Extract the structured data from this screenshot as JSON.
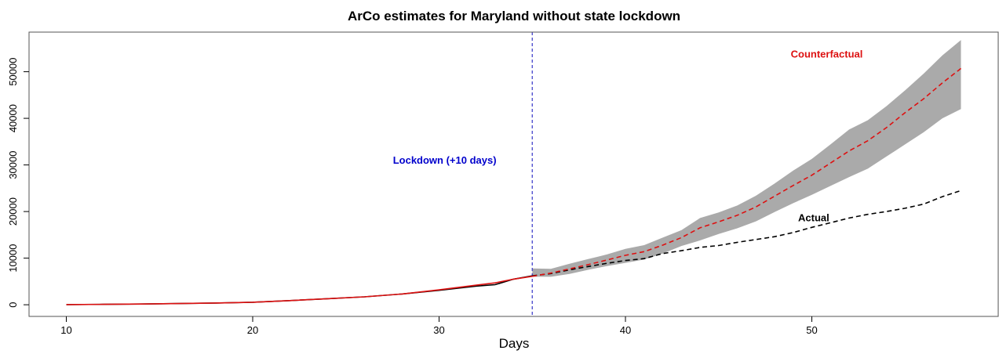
{
  "chart_data": {
    "type": "line",
    "title": "ArCo estimates for Maryland without state lockdown",
    "xlabel": "Days",
    "ylabel": "",
    "xlim": [
      8,
      60
    ],
    "ylim": [
      -2500,
      58500
    ],
    "xticks": [
      "10",
      "20",
      "30",
      "40",
      "50"
    ],
    "xtick_values": [
      10,
      20,
      30,
      40,
      50
    ],
    "yticks": [
      "0",
      "10000",
      "20000",
      "30000",
      "40000",
      "50000"
    ],
    "ytick_values": [
      0,
      10000,
      20000,
      30000,
      40000,
      50000
    ],
    "lockdown_day": 35,
    "annotations": [
      {
        "text": "Lockdown (+10 days)",
        "x": 30.3,
        "y": 30300,
        "color": "#0000cc"
      },
      {
        "text": "Counterfactual",
        "x": 50.8,
        "y": 53000,
        "color": "#dd1111"
      },
      {
        "text": "Actual",
        "x": 50.1,
        "y": 17900,
        "color": "#000000"
      }
    ],
    "series": [
      {
        "name": "Actual",
        "color": "#000000",
        "style": "solid-then-dashed",
        "x": [
          10,
          12,
          14,
          16,
          18,
          20,
          22,
          24,
          26,
          28,
          30,
          32,
          33,
          34,
          35,
          36,
          37,
          38,
          39,
          40,
          41,
          42,
          43,
          44,
          45,
          46,
          47,
          48,
          49,
          50,
          51,
          52,
          53,
          54,
          55,
          56,
          57,
          58
        ],
        "values": [
          30,
          80,
          150,
          250,
          380,
          550,
          900,
          1300,
          1700,
          2300,
          3100,
          4000,
          4300,
          5500,
          6200,
          6700,
          7500,
          8200,
          8900,
          9500,
          9900,
          11000,
          11600,
          12300,
          12700,
          13400,
          14000,
          14600,
          15500,
          16600,
          17600,
          18600,
          19400,
          20000,
          20700,
          21600,
          23200,
          24500
        ]
      },
      {
        "name": "Counterfactual",
        "color": "#dd1111",
        "style": "solid-then-dashed",
        "x": [
          10,
          12,
          14,
          16,
          18,
          20,
          22,
          24,
          26,
          28,
          30,
          32,
          33,
          34,
          35,
          36,
          37,
          38,
          39,
          40,
          41,
          42,
          43,
          44,
          45,
          46,
          47,
          48,
          49,
          50,
          51,
          52,
          53,
          54,
          55,
          56,
          57,
          58
        ],
        "values": [
          30,
          80,
          150,
          250,
          380,
          550,
          900,
          1300,
          1700,
          2300,
          3200,
          4200,
          4700,
          5500,
          6100,
          6800,
          7700,
          8600,
          9600,
          10600,
          11400,
          12800,
          14400,
          16500,
          17800,
          19200,
          21000,
          23300,
          25600,
          27800,
          30400,
          33000,
          35200,
          38000,
          41200,
          44200,
          47600,
          50700
        ],
        "band_lower": [
          null,
          null,
          null,
          null,
          null,
          null,
          null,
          null,
          null,
          null,
          null,
          null,
          null,
          null,
          6000,
          6000,
          6600,
          7500,
          8300,
          9000,
          9700,
          11000,
          12600,
          13800,
          15200,
          16400,
          17900,
          19900,
          21800,
          23600,
          25500,
          27400,
          29200,
          31800,
          34400,
          37000,
          40000,
          42000
        ],
        "band_upper": [
          null,
          null,
          null,
          null,
          null,
          null,
          null,
          null,
          null,
          null,
          null,
          null,
          null,
          null,
          7800,
          7700,
          8800,
          9800,
          10800,
          12000,
          12800,
          14400,
          16000,
          18600,
          19800,
          21300,
          23400,
          26000,
          28800,
          31300,
          34400,
          37600,
          39600,
          42600,
          46000,
          49600,
          53500,
          56800
        ]
      }
    ]
  }
}
